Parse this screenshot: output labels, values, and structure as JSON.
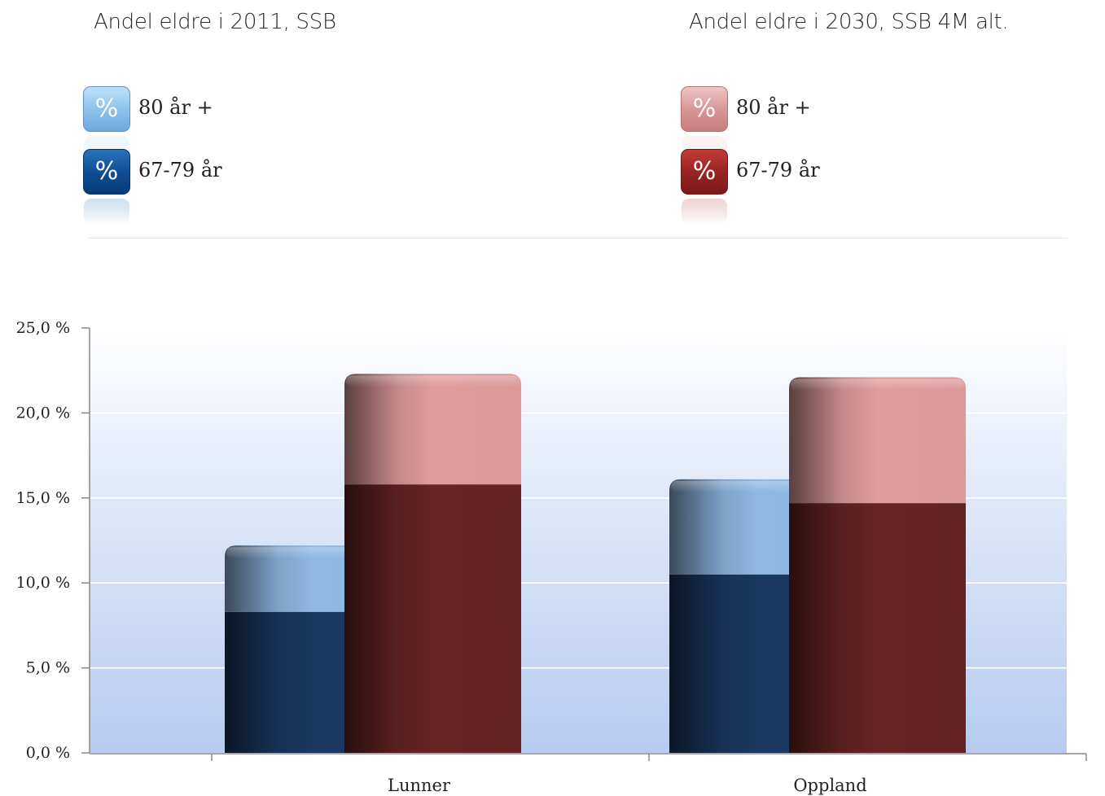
{
  "legend": {
    "left": {
      "title": "Andel eldre i 2011, SSB",
      "items": [
        {
          "label": "80 år +",
          "symbol": "%"
        },
        {
          "label": "67-79 år",
          "symbol": "%"
        }
      ]
    },
    "right": {
      "title": "Andel eldre i 2030, SSB 4M alt.",
      "items": [
        {
          "label": "80 år +",
          "symbol": "%"
        },
        {
          "label": "67-79 år",
          "symbol": "%"
        }
      ]
    }
  },
  "chart_data": {
    "type": "bar",
    "stacked": true,
    "categories": [
      "Lunner",
      "Oppland"
    ],
    "series": [
      {
        "name": "67-79 år",
        "group": "2011",
        "values": [
          8.3,
          10.5
        ],
        "color": "#1a3861"
      },
      {
        "name": "80 år +",
        "group": "2011",
        "values": [
          3.9,
          5.6
        ],
        "color": "#8fb8e3"
      },
      {
        "name": "67-79 år",
        "group": "2030",
        "values": [
          15.8,
          14.7
        ],
        "color": "#662423"
      },
      {
        "name": "80 år +",
        "group": "2030",
        "values": [
          6.5,
          7.4
        ],
        "color": "#e09c9b"
      }
    ],
    "yticks": [
      "0,0 %",
      "5,0 %",
      "10,0 %",
      "15,0 %",
      "20,0 %",
      "25,0 %"
    ],
    "ylim": [
      0,
      25
    ],
    "grid": true,
    "legend_position": "top"
  }
}
